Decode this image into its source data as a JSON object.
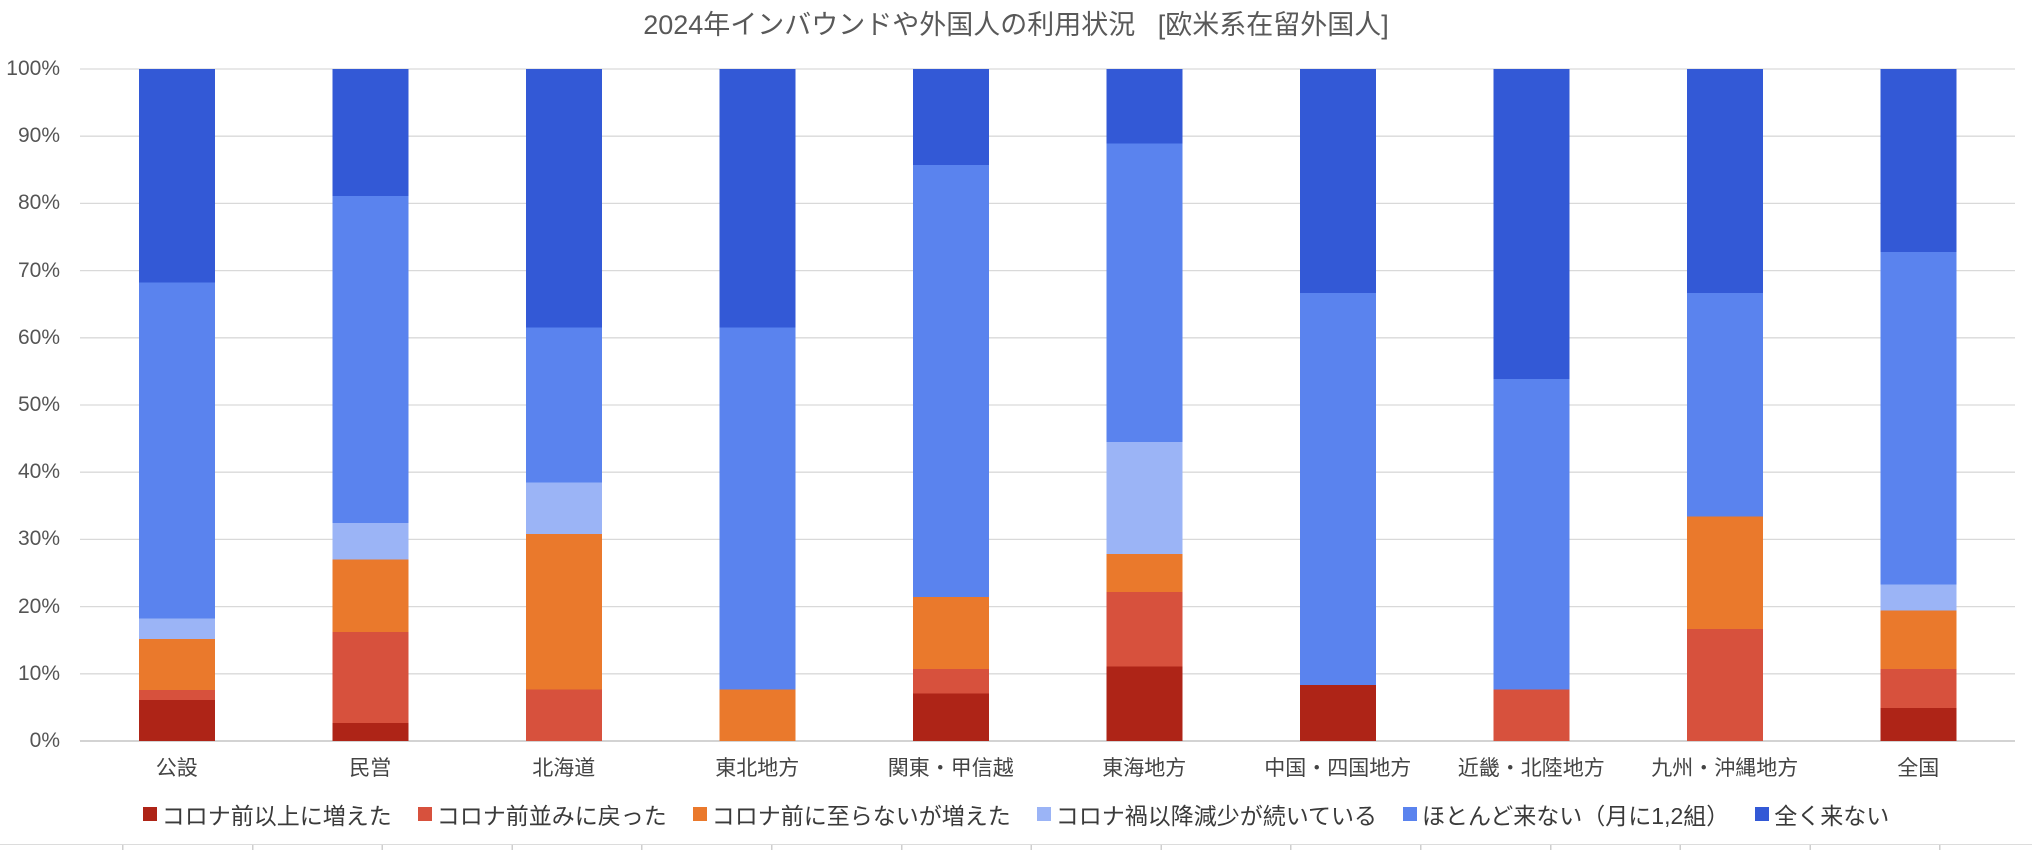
{
  "chart_data": {
    "type": "bar",
    "stacked": "percent",
    "title": "2024年インバウンドや外国人の利用状況   [欧米系在留外国人]",
    "ylim": [
      0,
      100
    ],
    "y_ticks": [
      "0%",
      "10%",
      "20%",
      "30%",
      "40%",
      "50%",
      "60%",
      "70%",
      "80%",
      "90%",
      "100%"
    ],
    "grid": true,
    "legend_position": "bottom",
    "categories": [
      "公設",
      "民営",
      "北海道",
      "東北地方",
      "関東・甲信越",
      "東海地方",
      "中国・四国地方",
      "近畿・北陸地方",
      "九州・沖縄地方",
      "全国"
    ],
    "series": [
      {
        "name": "コロナ前以上に増えた",
        "color": "#ae2417",
        "values": [
          6.1,
          2.7,
          0,
          0,
          7.1,
          11.1,
          8.3,
          0,
          0,
          4.9
        ]
      },
      {
        "name": "コロナ前並みに戻った",
        "color": "#d7513d",
        "values": [
          1.5,
          13.5,
          7.7,
          0,
          3.6,
          11.1,
          0,
          7.7,
          16.7,
          5.8
        ]
      },
      {
        "name": "コロナ前に至らないが増えた",
        "color": "#ea792c",
        "values": [
          7.6,
          10.8,
          23.1,
          7.7,
          10.7,
          5.6,
          0,
          0,
          16.7,
          8.7
        ]
      },
      {
        "name": "コロナ禍以降減少が続いている",
        "color": "#9bb4f6",
        "values": [
          3.0,
          5.4,
          7.7,
          0,
          0,
          16.7,
          0,
          0,
          0,
          3.9
        ]
      },
      {
        "name": "ほとんど来ない（月に1,2組）",
        "color": "#5a83ee",
        "values": [
          50.0,
          48.6,
          23.1,
          53.8,
          64.3,
          44.4,
          58.3,
          46.2,
          33.3,
          49.5
        ]
      },
      {
        "name": "全く来ない",
        "color": "#3359d6",
        "values": [
          31.8,
          18.9,
          38.5,
          38.5,
          14.3,
          11.1,
          33.3,
          46.2,
          33.3,
          27.2
        ]
      }
    ]
  }
}
